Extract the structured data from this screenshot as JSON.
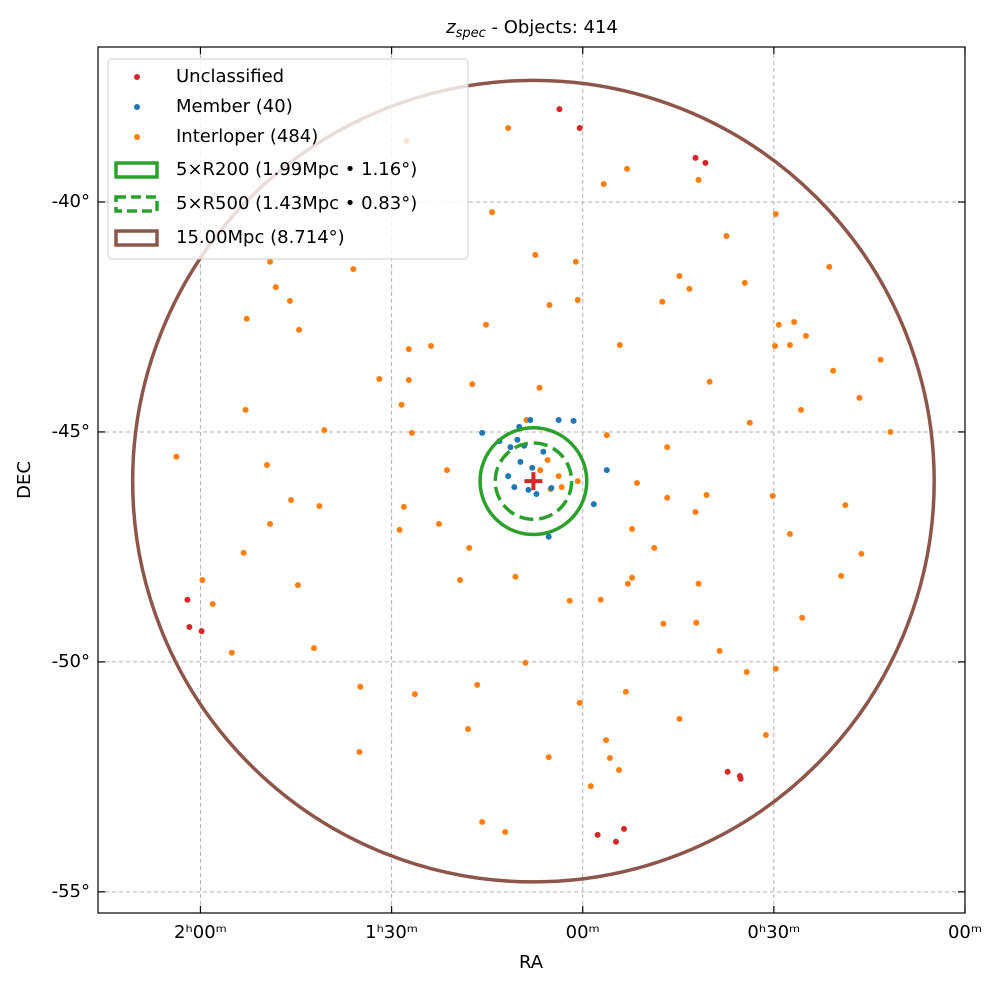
{
  "chart_data": {
    "type": "sky-scatter",
    "title_symbol": "z",
    "title_subscript": "spec",
    "title": " - Objects: 414",
    "x_label": "RA",
    "y_label": "DEC",
    "xlim": [
      2.268,
      0.0
    ],
    "ylim": [
      -55.46,
      -36.63
    ],
    "xticks": [
      {
        "value": 2.0,
        "label": "2ʰ00ᵐ"
      },
      {
        "value": 1.5,
        "label": "1ʰ30ᵐ"
      },
      {
        "value": 1.0,
        "label": "00ᵐ"
      },
      {
        "value": 0.5,
        "label": "0ʰ30ᵐ"
      },
      {
        "value": 0.0,
        "label": "00ᵐ"
      }
    ],
    "yticks": [
      {
        "value": -40,
        "label": "-40°"
      },
      {
        "value": -45,
        "label": "-45°"
      },
      {
        "value": -50,
        "label": "-50°"
      },
      {
        "value": -55,
        "label": "-55°"
      }
    ],
    "grid": true,
    "series": [
      {
        "name": "Unclassified",
        "color": "#d62728",
        "x": [
          1.061,
          1.008,
          0.705,
          0.679,
          2.034,
          2.029,
          1.997,
          0.621,
          0.589,
          0.587,
          0.961,
          0.913,
          0.892
        ],
        "y": [
          -37.98,
          -38.39,
          -39.04,
          -39.15,
          -48.65,
          -49.24,
          -49.33,
          -52.39,
          -52.48,
          -52.54,
          -53.76,
          -53.91,
          -53.63
        ]
      },
      {
        "name": "Member (40)",
        "color": "#1f77b4",
        "x": [
          1.263,
          1.166,
          1.137,
          1.063,
          1.024,
          1.189,
          1.153,
          1.163,
          1.132,
          1.195,
          1.179,
          1.142,
          1.121,
          1.082,
          0.937,
          0.971,
          1.089,
          1.171,
          1.103,
          1.218
        ],
        "y": [
          -45.02,
          -44.89,
          -44.74,
          -44.74,
          -44.76,
          -45.33,
          -45.3,
          -45.65,
          -45.78,
          -45.96,
          -46.2,
          -46.26,
          -46.35,
          -46.22,
          -45.83,
          -46.57,
          -47.28,
          -45.17,
          -45.43,
          -45.2
        ]
      },
      {
        "name": "Interloper (484)",
        "color": "#ff7f0e",
        "x": [
          1.195,
          1.461,
          0.884,
          0.945,
          0.697,
          0.495,
          0.624,
          1.237,
          1.124,
          1.018,
          1.818,
          1.803,
          1.766,
          1.879,
          1.742,
          1.6,
          1.455,
          1.397,
          1.253,
          1.087,
          1.013,
          0.903,
          0.792,
          0.747,
          0.721,
          0.576,
          0.487,
          0.447,
          0.416,
          0.458,
          0.497,
          0.345,
          0.355,
          0.221,
          0.195,
          0.276,
          0.429,
          0.563,
          0.668,
          0.779,
          0.937,
          0.858,
          0.779,
          0.705,
          0.676,
          0.813,
          0.871,
          1.013,
          1.063,
          1.084,
          1.111,
          1.092,
          1.055,
          1.147,
          1.113,
          1.289,
          1.455,
          1.532,
          1.474,
          1.447,
          1.355,
          1.376,
          1.468,
          1.479,
          1.297,
          1.321,
          1.176,
          1.034,
          0.953,
          0.882,
          0.789,
          0.703,
          0.642,
          0.571,
          0.426,
          0.324,
          0.271,
          0.458,
          0.503,
          0.313,
          1.689,
          1.763,
          1.818,
          1.887,
          1.995,
          1.968,
          1.918,
          1.745,
          1.703,
          1.882,
          2.063,
          1.826,
          1.676,
          1.582,
          1.439,
          1.276,
          1.15,
          1.008,
          0.887,
          0.747,
          0.939,
          0.929,
          0.905,
          0.979,
          1.089,
          1.3,
          1.584,
          1.263,
          1.203,
          0.521,
          0.495,
          0.871,
          0.697
        ],
        "y": [
          -38.39,
          -38.67,
          -39.28,
          -39.61,
          -39.52,
          -40.26,
          -40.74,
          -40.22,
          -41.15,
          -41.3,
          -41.3,
          -41.85,
          -42.15,
          -42.54,
          -42.78,
          -41.46,
          -43.2,
          -43.13,
          -42.67,
          -42.24,
          -42.13,
          -43.11,
          -42.17,
          -41.61,
          -41.89,
          -41.76,
          -42.67,
          -42.61,
          -42.91,
          -43.11,
          -43.13,
          -43.67,
          -41.41,
          -43.43,
          -45.0,
          -44.26,
          -44.52,
          -44.8,
          -43.91,
          -45.33,
          -45.07,
          -46.11,
          -46.43,
          -46.74,
          -46.37,
          -47.52,
          -47.11,
          -46.07,
          -45.96,
          -46.24,
          -45.83,
          -45.61,
          -46.2,
          -44.74,
          -44.04,
          -43.96,
          -43.87,
          -43.85,
          -44.41,
          -45.02,
          -45.83,
          -47.0,
          -46.63,
          -47.13,
          -47.52,
          -48.22,
          -48.15,
          -48.67,
          -48.65,
          -48.3,
          -49.17,
          -49.15,
          -49.76,
          -50.22,
          -49.04,
          -48.13,
          -47.65,
          -47.22,
          -46.39,
          -46.59,
          -46.61,
          -46.48,
          -47.0,
          -47.63,
          -48.22,
          -48.74,
          -49.8,
          -48.33,
          -49.7,
          -44.52,
          -45.54,
          -45.72,
          -44.96,
          -50.54,
          -50.7,
          -50.5,
          -50.02,
          -50.89,
          -50.65,
          -51.24,
          -51.7,
          -52.09,
          -52.35,
          -52.7,
          -52.07,
          -51.46,
          -51.96,
          -53.48,
          -53.7,
          -51.59,
          -50.15,
          -48.17,
          -48.3
        ]
      }
    ],
    "center": {
      "ra": 1.129,
      "dec": -46.07,
      "color": "#d62728"
    },
    "circles": [
      {
        "label": "5×R200 (1.99Mpc • 1.16°)",
        "radius": 1.16,
        "color": "#2ca02c",
        "dashed": false
      },
      {
        "label": "5×R500 (1.43Mpc • 0.83°)",
        "radius": 0.83,
        "color": "#2ca02c",
        "dashed": true
      },
      {
        "label": "15.00Mpc (8.714°)",
        "radius": 8.714,
        "color": "#8c564b",
        "dashed": false
      }
    ]
  }
}
